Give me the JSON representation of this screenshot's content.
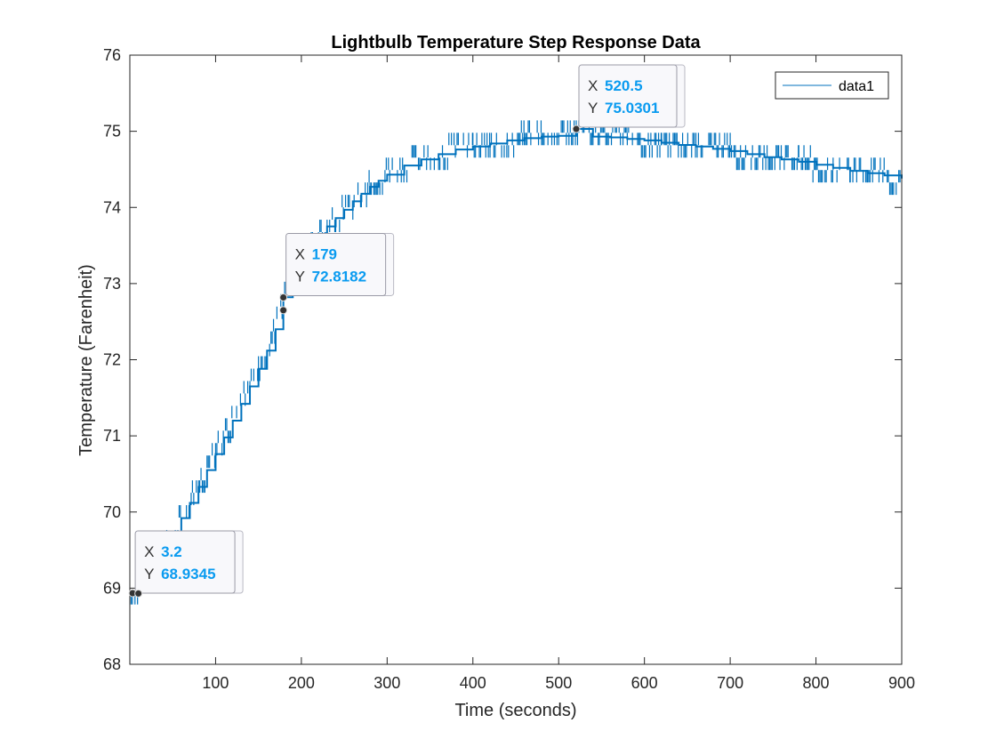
{
  "chart_data": {
    "type": "line",
    "title": "Lightbulb Temperature Step Response Data",
    "xlabel": "Time (seconds)",
    "ylabel": "Temperature (Farenheit)",
    "xlim": [
      0,
      900
    ],
    "ylim": [
      68,
      76
    ],
    "xticks": [
      100,
      200,
      300,
      400,
      500,
      600,
      700,
      800,
      900
    ],
    "yticks": [
      68,
      69,
      70,
      71,
      72,
      73,
      74,
      75,
      76
    ],
    "grid": false,
    "legend_position": "top-right",
    "series": [
      {
        "name": "data1",
        "color": "#0072BD",
        "x": [
          0,
          10,
          20,
          30,
          40,
          50,
          60,
          70,
          80,
          90,
          100,
          110,
          120,
          130,
          140,
          150,
          160,
          170,
          179,
          190,
          200,
          210,
          220,
          230,
          240,
          250,
          260,
          270,
          280,
          290,
          300,
          320,
          340,
          360,
          380,
          400,
          420,
          440,
          460,
          480,
          500,
          520.5,
          540,
          560,
          580,
          600,
          620,
          640,
          660,
          680,
          700,
          720,
          740,
          760,
          780,
          800,
          820,
          840,
          860,
          880,
          900
        ],
        "y": [
          68.93,
          68.98,
          69.12,
          69.28,
          69.5,
          69.72,
          69.92,
          70.12,
          70.33,
          70.55,
          70.76,
          70.98,
          71.2,
          71.42,
          71.65,
          71.88,
          72.12,
          72.4,
          72.82,
          73.05,
          73.28,
          73.45,
          73.6,
          73.75,
          73.86,
          73.97,
          74.08,
          74.18,
          74.27,
          74.35,
          74.43,
          74.55,
          74.63,
          74.7,
          74.76,
          74.8,
          74.84,
          74.88,
          74.91,
          74.93,
          74.94,
          75.03,
          74.93,
          74.92,
          74.9,
          74.88,
          74.85,
          74.82,
          74.8,
          74.77,
          74.74,
          74.7,
          74.66,
          74.63,
          74.6,
          74.56,
          74.52,
          74.48,
          74.45,
          74.42,
          74.38
        ]
      }
    ],
    "legend": [
      "data1"
    ],
    "datatips": [
      {
        "x_label": "X",
        "x_value": "3.2",
        "y_label": "Y",
        "y_value": "68.9345",
        "x": 3.2,
        "y": 68.9345
      },
      {
        "x_label": "X",
        "x_value": "179",
        "y_label": "Y",
        "y_value": "72.8182",
        "x": 179,
        "y": 72.8182
      },
      {
        "x_label": "X",
        "x_value": "520.5",
        "y_label": "Y",
        "y_value": "75.0301",
        "x": 520.5,
        "y": 75.0301
      }
    ],
    "datatip_value_color": "#0a9bf0"
  }
}
